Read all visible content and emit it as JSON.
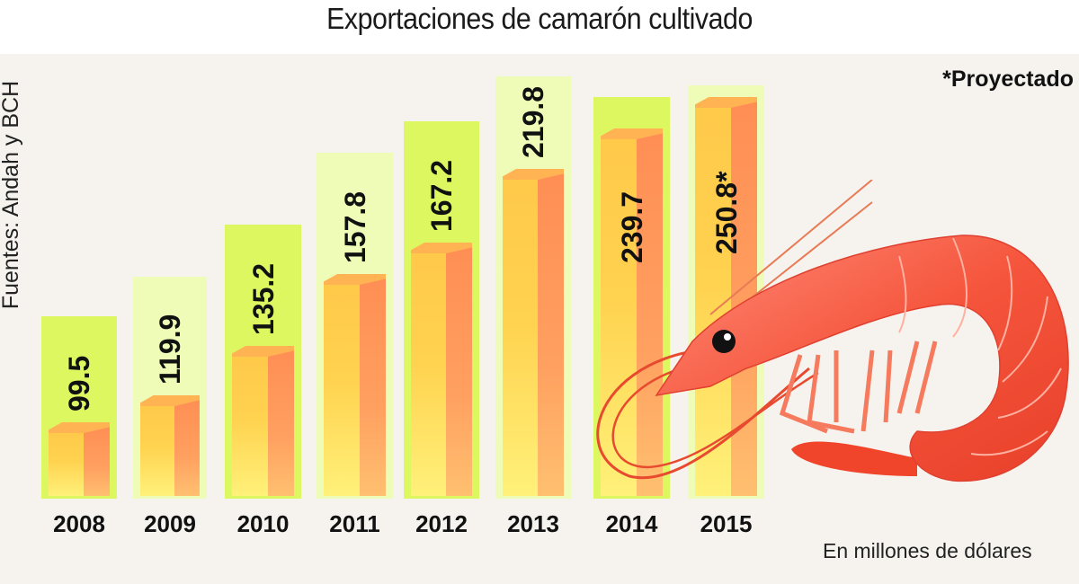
{
  "title": "Exportaciones de camarón cultivado",
  "source": "Fuentes: Andah y BCH",
  "note": "*Proyectado",
  "units": "En millones de dólares",
  "colors": {
    "panel_bright": "#dcf760",
    "panel_pale": "#effcb8",
    "bar_front": "#ffd24f",
    "bar_side": "#ff9a5c",
    "shrimp": "#f2553a"
  },
  "bars": [
    {
      "year": "2008",
      "label": "99.5"
    },
    {
      "year": "2009",
      "label": "119.9"
    },
    {
      "year": "2010",
      "label": "135.2"
    },
    {
      "year": "2011",
      "label": "157.8"
    },
    {
      "year": "2012",
      "label": "167.2"
    },
    {
      "year": "2013",
      "label": "219.8"
    },
    {
      "year": "2014",
      "label": "239.7"
    },
    {
      "year": "2015",
      "label": "250.8*"
    }
  ],
  "chart_data": {
    "type": "bar",
    "title": "Exportaciones de camarón cultivado",
    "categories": [
      "2008",
      "2009",
      "2010",
      "2011",
      "2012",
      "2013",
      "2014",
      "2015"
    ],
    "values": [
      99.5,
      119.9,
      135.2,
      157.8,
      167.2,
      219.8,
      239.7,
      250.8
    ],
    "xlabel": "",
    "ylabel": "En millones de dólares",
    "annotations": [
      "*Proyectado (2015)",
      "Fuentes: Andah y BCH"
    ],
    "grid": false,
    "legend": null
  }
}
